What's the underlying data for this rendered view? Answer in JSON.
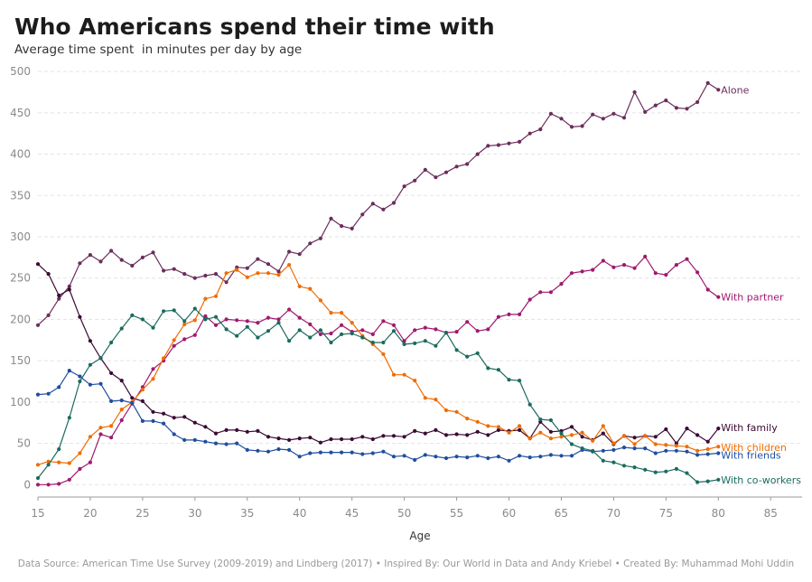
{
  "header": {
    "title": "Who Americans spend their time with",
    "subtitle": "Average time spent  in minutes per day by age"
  },
  "footer": {
    "text": "Data Source: American Time Use Survey (2009-2019) and Lindberg (2017) • Inspired By: Our World in Data and Andy Kriebel • Created By: Muhammad Mohi Uddin"
  },
  "chart_data": {
    "type": "line",
    "title": "Who Americans spend their time with",
    "subtitle": "Average time spent  in minutes per day by age",
    "xlabel": "Age",
    "ylabel": "",
    "xlim": [
      15,
      88
    ],
    "ylim": [
      -15,
      510
    ],
    "xticks": [
      15,
      20,
      25,
      30,
      35,
      40,
      45,
      50,
      55,
      60,
      65,
      70,
      75,
      80,
      85
    ],
    "yticks": [
      0,
      50,
      100,
      150,
      200,
      250,
      300,
      350,
      400,
      450,
      500
    ],
    "grid": true,
    "x": [
      15,
      16,
      17,
      18,
      19,
      20,
      21,
      22,
      23,
      24,
      25,
      26,
      27,
      28,
      29,
      30,
      31,
      32,
      33,
      34,
      35,
      36,
      37,
      38,
      39,
      40,
      41,
      42,
      43,
      44,
      45,
      46,
      47,
      48,
      49,
      50,
      51,
      52,
      53,
      54,
      55,
      56,
      57,
      58,
      59,
      60,
      61,
      62,
      63,
      64,
      65,
      66,
      67,
      68,
      69,
      70,
      71,
      72,
      73,
      74,
      75,
      76,
      77,
      78,
      79,
      80
    ],
    "series": [
      {
        "name": "Alone",
        "color": "#6b2d5c",
        "values": [
          193,
          205,
          225,
          240,
          268,
          278,
          270,
          283,
          272,
          265,
          275,
          281,
          259,
          261,
          255,
          250,
          253,
          255,
          245,
          263,
          262,
          273,
          267,
          258,
          282,
          279,
          292,
          298,
          322,
          313,
          310,
          327,
          340,
          333,
          341,
          361,
          368,
          381,
          372,
          378,
          385,
          388,
          400,
          410,
          411,
          413,
          415,
          425,
          430,
          449,
          443,
          433,
          434,
          448,
          443,
          449,
          444,
          475,
          451,
          459,
          465,
          456,
          455,
          463,
          486,
          478
        ]
      },
      {
        "name": "With partner",
        "color": "#a0196e",
        "values": [
          0,
          0,
          1,
          6,
          19,
          27,
          61,
          57,
          78,
          98,
          118,
          140,
          150,
          168,
          176,
          181,
          204,
          193,
          200,
          199,
          198,
          196,
          202,
          200,
          212,
          202,
          194,
          182,
          183,
          193,
          185,
          187,
          182,
          198,
          193,
          174,
          187,
          190,
          188,
          184,
          185,
          197,
          186,
          188,
          203,
          206,
          206,
          224,
          233,
          233,
          243,
          256,
          258,
          260,
          271,
          263,
          266,
          262,
          276,
          256,
          254,
          266,
          273,
          257,
          236,
          227
        ]
      },
      {
        "name": "With family",
        "color": "#3a0a34",
        "values": [
          267,
          255,
          229,
          236,
          203,
          174,
          153,
          135,
          126,
          105,
          101,
          88,
          86,
          81,
          82,
          75,
          70,
          62,
          66,
          66,
          64,
          65,
          58,
          56,
          54,
          56,
          57,
          51,
          55,
          55,
          55,
          58,
          55,
          59,
          59,
          58,
          65,
          62,
          66,
          60,
          61,
          60,
          64,
          60,
          66,
          65,
          66,
          56,
          76,
          64,
          65,
          70,
          58,
          54,
          62,
          49,
          59,
          57,
          59,
          58,
          67,
          50,
          68,
          60,
          52,
          68
        ]
      },
      {
        "name": "With children",
        "color": "#ef6c00",
        "values": [
          24,
          28,
          27,
          26,
          38,
          58,
          69,
          71,
          91,
          100,
          115,
          128,
          153,
          175,
          194,
          199,
          225,
          228,
          256,
          260,
          251,
          256,
          256,
          254,
          266,
          240,
          237,
          223,
          208,
          208,
          196,
          180,
          170,
          158,
          133,
          133,
          126,
          105,
          103,
          90,
          88,
          80,
          76,
          71,
          70,
          63,
          71,
          56,
          63,
          56,
          58,
          60,
          63,
          53,
          71,
          50,
          59,
          49,
          59,
          49,
          48,
          47,
          46,
          41,
          43,
          46
        ]
      },
      {
        "name": "With friends",
        "color": "#1f4e9e",
        "values": [
          109,
          110,
          118,
          138,
          131,
          121,
          122,
          101,
          102,
          99,
          77,
          77,
          74,
          61,
          54,
          54,
          52,
          50,
          49,
          50,
          42,
          41,
          40,
          43,
          42,
          34,
          38,
          39,
          39,
          39,
          39,
          37,
          38,
          40,
          34,
          35,
          30,
          36,
          34,
          32,
          34,
          33,
          35,
          32,
          34,
          29,
          35,
          33,
          34,
          36,
          35,
          35,
          42,
          40,
          41,
          42,
          45,
          44,
          44,
          38,
          41,
          41,
          40,
          36,
          37,
          38
        ]
      },
      {
        "name": "With co-workers",
        "color": "#1b6b5e",
        "values": [
          8,
          24,
          43,
          81,
          125,
          145,
          153,
          172,
          189,
          205,
          200,
          190,
          210,
          211,
          198,
          213,
          200,
          203,
          188,
          180,
          191,
          178,
          186,
          196,
          174,
          187,
          178,
          187,
          172,
          182,
          183,
          178,
          172,
          172,
          186,
          170,
          171,
          174,
          168,
          184,
          163,
          155,
          159,
          141,
          139,
          127,
          126,
          97,
          79,
          78,
          62,
          49,
          44,
          41,
          29,
          27,
          23,
          21,
          18,
          15,
          16,
          19,
          14,
          3,
          4,
          6
        ]
      }
    ]
  }
}
